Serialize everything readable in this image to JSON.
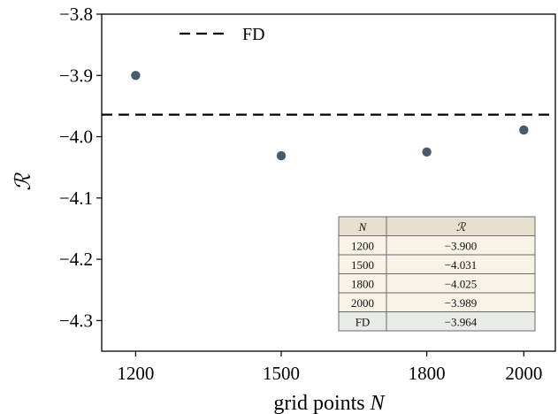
{
  "chart_data": {
    "type": "scatter",
    "xlabel": "grid points N",
    "ylabel": "ℛ",
    "x_ticks": [
      "1200",
      "1500",
      "1800",
      "2000"
    ],
    "y_ticks": [
      "−3.8",
      "−3.9",
      "−4.0",
      "−4.1",
      "−4.2",
      "−4.3"
    ],
    "xlim": [
      1130,
      2065
    ],
    "ylim": [
      -4.35,
      -3.8
    ],
    "series": [
      {
        "type": "scatter",
        "color": "#4a5a6e",
        "points": [
          {
            "x": 1200,
            "y": -3.9
          },
          {
            "x": 1500,
            "y": -4.031
          },
          {
            "x": 1800,
            "y": -4.025
          },
          {
            "x": 2000,
            "y": -3.989
          }
        ]
      },
      {
        "type": "hline",
        "name": "FD",
        "y": -3.964,
        "style": "dashed",
        "color": "#000000"
      }
    ],
    "legend": {
      "position": "top-left",
      "entries": [
        "FD"
      ]
    },
    "table": {
      "headers": [
        "N",
        "ℛ"
      ],
      "rows": [
        [
          "1200",
          "−3.900"
        ],
        [
          "1500",
          "−4.031"
        ],
        [
          "1800",
          "−4.025"
        ],
        [
          "2000",
          "−3.989"
        ],
        [
          "FD",
          "−3.964"
        ]
      ],
      "header_color": "#e8dfcf",
      "row_color": "#f8f2e7",
      "last_row_color": "#e9ebe6",
      "position": "bottom-right"
    }
  }
}
